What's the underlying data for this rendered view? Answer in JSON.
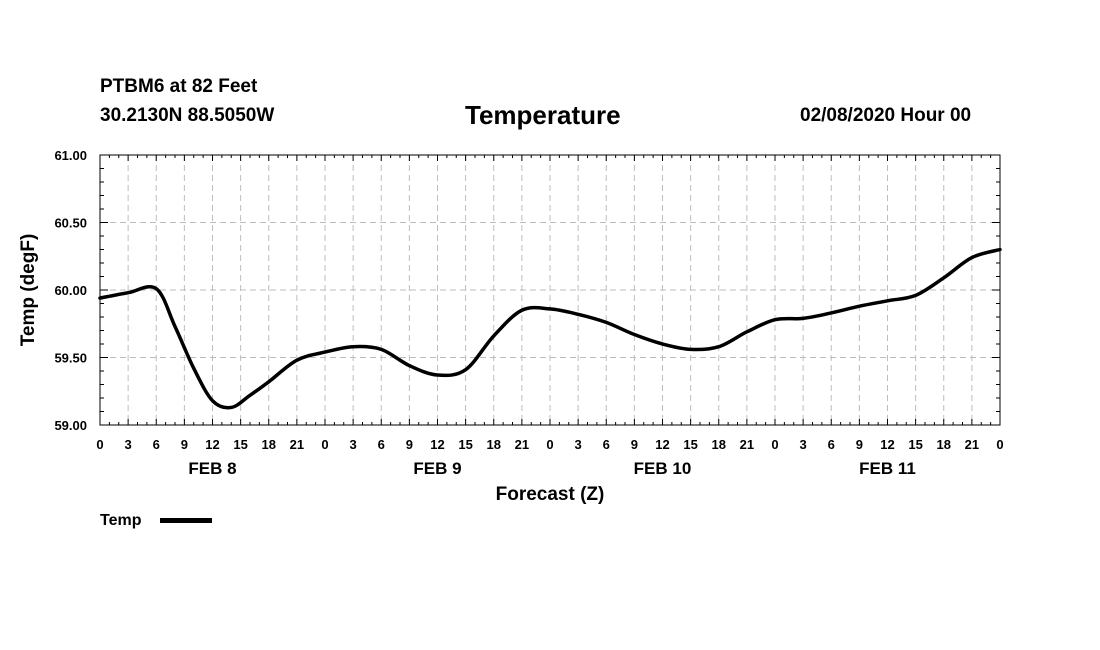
{
  "header": {
    "station": "PTBM6 at 82 Feet",
    "coords": "30.2130N 88.5050W",
    "title": "Temperature",
    "run": "02/08/2020 Hour 00"
  },
  "chart_data": {
    "type": "line",
    "title": "Temperature",
    "xlabel": "Forecast (Z)",
    "ylabel": "Temp (degF)",
    "ylim": [
      59.0,
      61.0
    ],
    "yticks": [
      "59.00",
      "59.50",
      "60.00",
      "60.50",
      "61.00"
    ],
    "xlim_hours": [
      0,
      96
    ],
    "xtick_labels": [
      "0",
      "3",
      "6",
      "9",
      "12",
      "15",
      "18",
      "21",
      "0",
      "3",
      "6",
      "9",
      "12",
      "15",
      "18",
      "21",
      "0",
      "3",
      "6",
      "9",
      "12",
      "15",
      "18",
      "21",
      "0",
      "3",
      "6",
      "9",
      "12",
      "15",
      "18",
      "21",
      "0"
    ],
    "day_labels": [
      {
        "label": "FEB 8",
        "hour": 12
      },
      {
        "label": "FEB 9",
        "hour": 36
      },
      {
        "label": "FEB 10",
        "hour": 60
      },
      {
        "label": "FEB 11",
        "hour": 84
      }
    ],
    "grid": true,
    "legend_position": "bottom-left",
    "series": [
      {
        "name": "Temp",
        "color": "#000000",
        "x": [
          0,
          3,
          6,
          8,
          10,
          12,
          14,
          16,
          18,
          21,
          24,
          27,
          30,
          33,
          36,
          39,
          42,
          45,
          48,
          51,
          54,
          57,
          60,
          63,
          66,
          69,
          72,
          75,
          78,
          81,
          84,
          87,
          90,
          93,
          96
        ],
        "values": [
          59.94,
          59.98,
          60.01,
          59.73,
          59.42,
          59.18,
          59.13,
          59.22,
          59.32,
          59.48,
          59.54,
          59.58,
          59.56,
          59.44,
          59.37,
          59.41,
          59.66,
          59.85,
          59.86,
          59.82,
          59.76,
          59.67,
          59.6,
          59.56,
          59.58,
          59.69,
          59.78,
          59.79,
          59.83,
          59.88,
          59.92,
          59.96,
          60.09,
          60.24,
          60.3
        ]
      }
    ]
  }
}
